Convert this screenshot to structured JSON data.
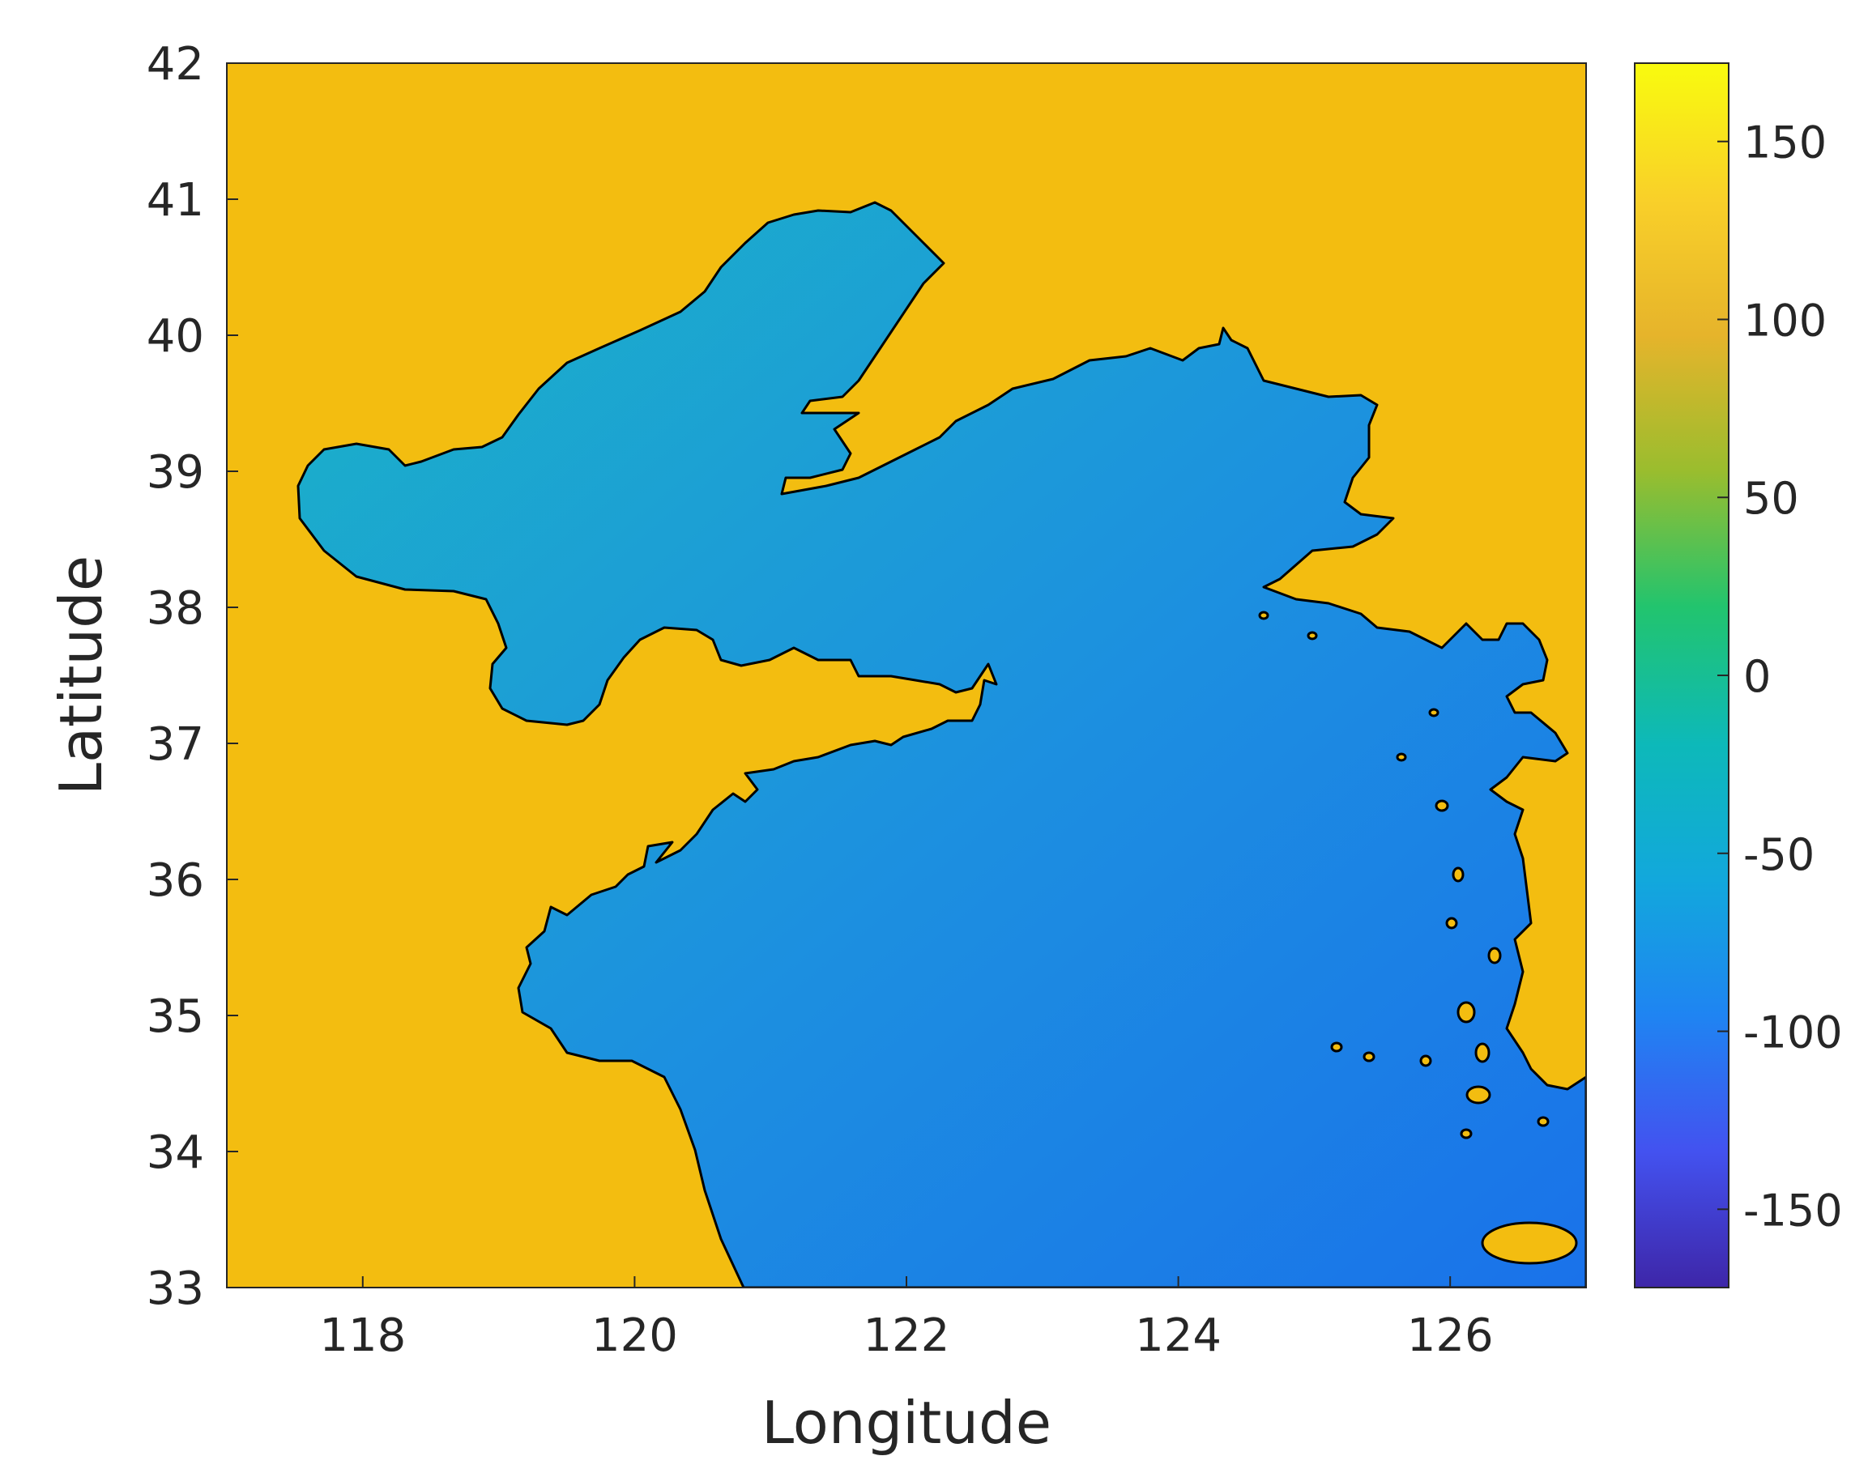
{
  "map": {
    "xlabel": "Longitude",
    "ylabel": "Latitude",
    "x_range": [
      117,
      127
    ],
    "y_range": [
      33,
      42
    ],
    "x_ticks": [
      "118",
      "120",
      "122",
      "124",
      "126"
    ],
    "y_ticks": [
      "33",
      "34",
      "35",
      "36",
      "37",
      "38",
      "39",
      "40",
      "41",
      "42"
    ],
    "land_color": "#F3BD10",
    "sea_color_shallow": "#18B5C8",
    "sea_color_deep": "#1A78E8",
    "coastline_color": "#000000"
  },
  "colorbar": {
    "ticks": [
      "150",
      "100",
      "50",
      "0",
      "-50",
      "-100",
      "-150"
    ],
    "range": [
      -172,
      172
    ],
    "colormap": "parula",
    "stops": [
      "#3E26A8",
      "#4352F0",
      "#1F84F2",
      "#12A8DC",
      "#0DB9B9",
      "#22C46E",
      "#9ABD2E",
      "#E6B42B",
      "#F9D029",
      "#F9FB0E"
    ]
  }
}
